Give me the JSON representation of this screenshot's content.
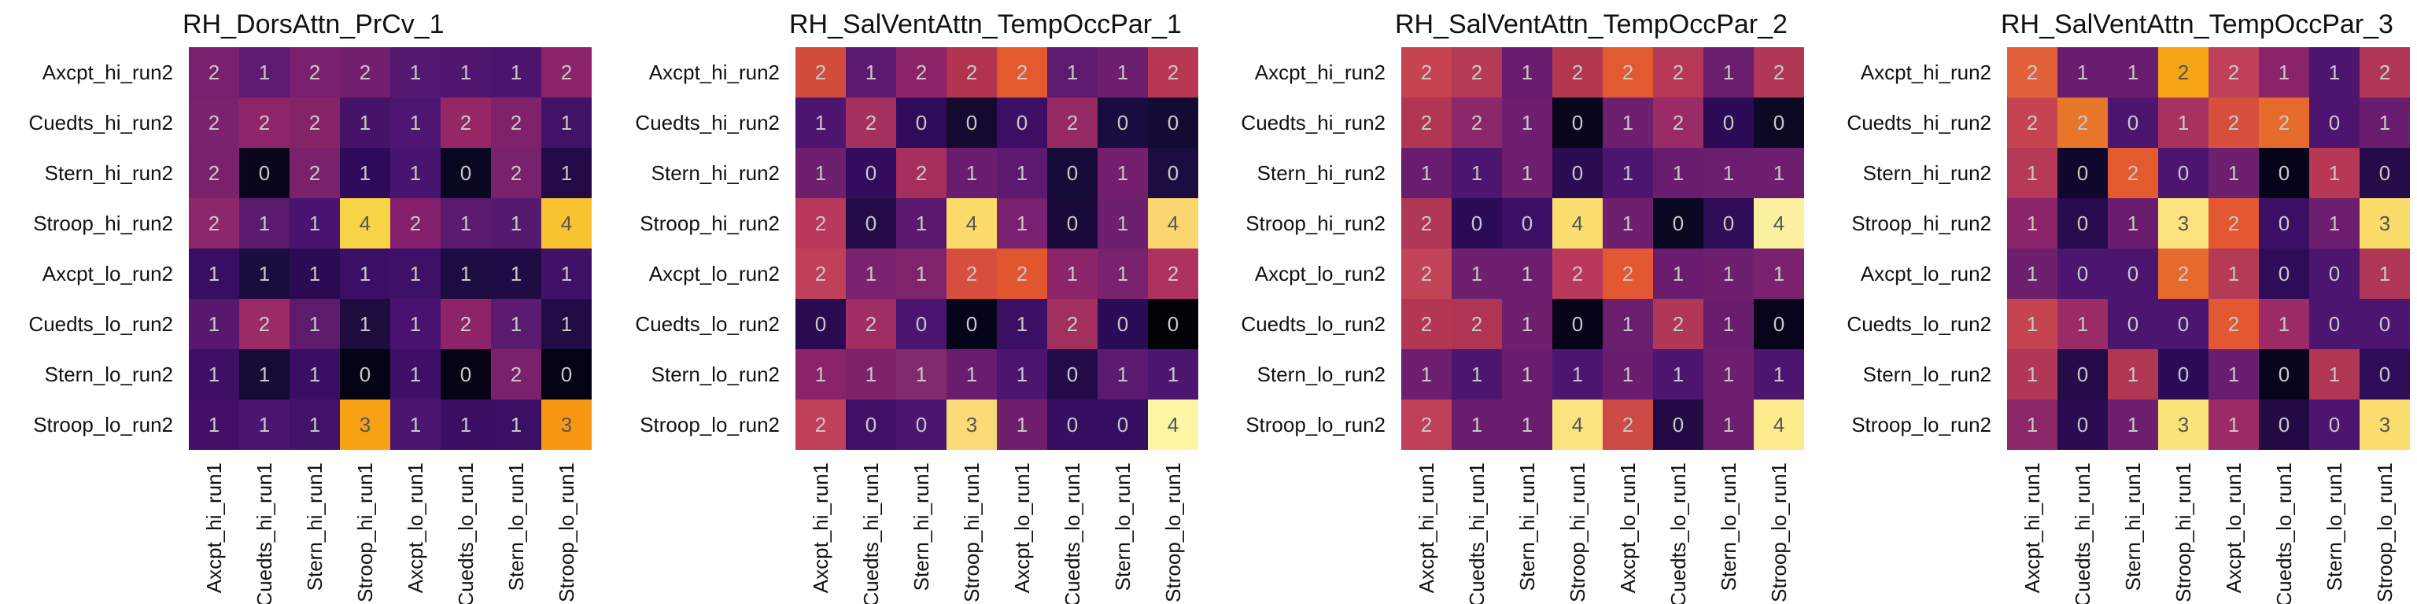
{
  "chart_data": [
    {
      "type": "heatmap",
      "title": "RH_DorsAttn_PrCv_1",
      "rows": [
        "Axcpt_hi_run2",
        "Cuedts_hi_run2",
        "Stern_hi_run2",
        "Stroop_hi_run2",
        "Axcpt_lo_run2",
        "Cuedts_lo_run2",
        "Stern_lo_run2",
        "Stroop_lo_run2"
      ],
      "cols": [
        "Axcpt_hi_run1",
        "Cuedts_hi_run1",
        "Stern_hi_run1",
        "Stroop_hi_run1",
        "Axcpt_lo_run1",
        "Cuedts_lo_run1",
        "Stern_lo_run1",
        "Stroop_lo_run1"
      ],
      "values": [
        [
          2,
          1,
          2,
          2,
          1,
          1,
          1,
          2
        ],
        [
          2,
          2,
          2,
          1,
          1,
          2,
          2,
          1
        ],
        [
          2,
          0,
          2,
          1,
          1,
          0,
          2,
          1
        ],
        [
          2,
          1,
          1,
          4,
          2,
          1,
          1,
          4
        ],
        [
          1,
          1,
          1,
          1,
          1,
          1,
          1,
          1
        ],
        [
          1,
          2,
          1,
          1,
          1,
          2,
          1,
          1
        ],
        [
          1,
          1,
          1,
          0,
          1,
          0,
          2,
          0
        ],
        [
          1,
          1,
          1,
          3,
          1,
          1,
          1,
          3
        ]
      ],
      "colors": [
        [
          "#7a1f6d",
          "#5d1a6e",
          "#7a1f6d",
          "#731f6d",
          "#541870",
          "#501670",
          "#4d1570",
          "#8a2369"
        ],
        [
          "#7c216c",
          "#8f2468",
          "#852367",
          "#461369",
          "#4f1572",
          "#962767",
          "#7f226b",
          "#411367"
        ],
        [
          "#7a206c",
          "#09061c",
          "#7b216b",
          "#2f0a5b",
          "#491470",
          "#0a0722",
          "#79216c",
          "#230b47"
        ],
        [
          "#8c2769",
          "#5a1a6e",
          "#4a136f",
          "#f6d445",
          "#831f6c",
          "#591a6f",
          "#561970",
          "#f9c230"
        ],
        [
          "#380e62",
          "#1b0c40",
          "#2b0b53",
          "#3a0f65",
          "#3e1067",
          "#1d0c42",
          "#1f0c45",
          "#411167"
        ],
        [
          "#57186d",
          "#9a2b66",
          "#5e1b6d",
          "#1e0c3f",
          "#491270",
          "#8d2468",
          "#5a1a6f",
          "#210c45"
        ],
        [
          "#3f0f66",
          "#140b36",
          "#3a0f63",
          "#050416",
          "#3e0f66",
          "#060414",
          "#7b216b",
          "#040313"
        ],
        [
          "#440f67",
          "#4b1670",
          "#411368",
          "#f7a115",
          "#4b1570",
          "#3a0f63",
          "#3b1064",
          "#f89812"
        ]
      ]
    },
    {
      "type": "heatmap",
      "title": "RH_SalVentAttn_TempOccPar_1",
      "rows": [
        "Axcpt_hi_run2",
        "Cuedts_hi_run2",
        "Stern_hi_run2",
        "Stroop_hi_run2",
        "Axcpt_lo_run2",
        "Cuedts_lo_run2",
        "Stern_lo_run2",
        "Stroop_lo_run2"
      ],
      "cols": [
        "Axcpt_hi_run1",
        "Cuedts_hi_run1",
        "Stern_hi_run1",
        "Stroop_hi_run1",
        "Axcpt_lo_run1",
        "Cuedts_lo_run1",
        "Stern_lo_run1",
        "Stroop_lo_run1"
      ],
      "values": [
        [
          2,
          1,
          2,
          2,
          2,
          1,
          1,
          2
        ],
        [
          1,
          2,
          0,
          0,
          0,
          2,
          0,
          0
        ],
        [
          1,
          0,
          2,
          1,
          1,
          0,
          1,
          0
        ],
        [
          2,
          0,
          1,
          4,
          1,
          0,
          1,
          4
        ],
        [
          2,
          1,
          1,
          2,
          2,
          1,
          1,
          2
        ],
        [
          0,
          2,
          0,
          0,
          1,
          2,
          0,
          0
        ],
        [
          1,
          1,
          1,
          1,
          1,
          0,
          1,
          1
        ],
        [
          2,
          0,
          0,
          3,
          1,
          0,
          0,
          4
        ]
      ],
      "colors": [
        [
          "#d24c3b",
          "#5c1a6f",
          "#8c2369",
          "#b2334f",
          "#e35a2f",
          "#5d1a6f",
          "#6d1e6e",
          "#b83755"
        ],
        [
          "#4d1570",
          "#a3305e",
          "#300b5a",
          "#16092f",
          "#3c0f64",
          "#962a65",
          "#1b0c40",
          "#140b34"
        ],
        [
          "#6e1f6d",
          "#340c5e",
          "#a82f5d",
          "#6a1d6e",
          "#5b1a6f",
          "#160b38",
          "#731f6d",
          "#1c0c40"
        ],
        [
          "#b8395b",
          "#230b48",
          "#5a196f",
          "#fbdc6a",
          "#792170",
          "#19093b",
          "#6e1f6d",
          "#fbd670"
        ],
        [
          "#c0405a",
          "#7a2270",
          "#7f236c",
          "#d94f3f",
          "#e2572f",
          "#8b2469",
          "#7a2270",
          "#ad325d"
        ],
        [
          "#2a0b52",
          "#9f2e62",
          "#4a1470",
          "#06041a",
          "#3a0f64",
          "#a2305e",
          "#2c0b56",
          "#020107"
        ],
        [
          "#8a2369",
          "#7e216b",
          "#802b6e",
          "#6a1d6e",
          "#4b1570",
          "#230b48",
          "#5b1a6f",
          "#4d1570"
        ],
        [
          "#c0405a",
          "#410f65",
          "#4b1570",
          "#fbda78",
          "#701f6d",
          "#360e61",
          "#350d60",
          "#fcf6a4"
        ]
      ]
    },
    {
      "type": "heatmap",
      "title": "RH_SalVentAttn_TempOccPar_2",
      "rows": [
        "Axcpt_hi_run2",
        "Cuedts_hi_run2",
        "Stern_hi_run2",
        "Stroop_hi_run2",
        "Axcpt_lo_run2",
        "Cuedts_lo_run2",
        "Stern_lo_run2",
        "Stroop_lo_run2"
      ],
      "cols": [
        "Axcpt_hi_run1",
        "Cuedts_hi_run1",
        "Stern_hi_run1",
        "Stroop_hi_run1",
        "Axcpt_lo_run1",
        "Cuedts_lo_run1",
        "Stern_lo_run1",
        "Stroop_lo_run1"
      ],
      "values": [
        [
          2,
          2,
          1,
          2,
          2,
          2,
          1,
          2
        ],
        [
          2,
          2,
          1,
          0,
          1,
          2,
          0,
          0
        ],
        [
          1,
          1,
          1,
          0,
          1,
          1,
          1,
          1
        ],
        [
          2,
          0,
          0,
          4,
          1,
          0,
          0,
          4
        ],
        [
          2,
          1,
          1,
          2,
          2,
          1,
          1,
          1
        ],
        [
          2,
          2,
          1,
          0,
          1,
          2,
          1,
          0
        ],
        [
          1,
          1,
          1,
          1,
          1,
          1,
          1,
          1
        ],
        [
          2,
          1,
          1,
          4,
          2,
          0,
          1,
          4
        ]
      ],
      "colors": [
        [
          "#c64452",
          "#b53a56",
          "#6a1d6e",
          "#b3374f",
          "#e25a2f",
          "#b63957",
          "#6b1e6e",
          "#b13756"
        ],
        [
          "#b03654",
          "#8c2769",
          "#6d1e6e",
          "#08051d",
          "#6e1f6d",
          "#9a2b66",
          "#2c0b56",
          "#0c0824"
        ],
        [
          "#6a1d6e",
          "#4b1570",
          "#6e1f6d",
          "#2b0b52",
          "#4b1570",
          "#6a1d6e",
          "#6b1e6e",
          "#6d1e6e"
        ],
        [
          "#b13756",
          "#2b0b56",
          "#3b0f65",
          "#fbde6f",
          "#6e1f6d",
          "#0a0722",
          "#2f0c58",
          "#fcf1a0"
        ],
        [
          "#c24458",
          "#6e1f6d",
          "#6d1e6e",
          "#b8395b",
          "#e35733",
          "#6a1d6e",
          "#6e1f6d",
          "#7a2270"
        ],
        [
          "#b33755",
          "#b03454",
          "#6e1f6d",
          "#070419",
          "#6c1e6e",
          "#b03756",
          "#6a1d6e",
          "#07041c"
        ],
        [
          "#6d1e6e",
          "#4b1570",
          "#6a1d6e",
          "#4d1570",
          "#6a1d6e",
          "#4d1570",
          "#6d1e6e",
          "#4b1570"
        ],
        [
          "#c0405a",
          "#6a1d6e",
          "#6a1d6e",
          "#fce380",
          "#cd4a47",
          "#220b45",
          "#6d1e6e",
          "#fcec8e"
        ]
      ]
    },
    {
      "type": "heatmap",
      "title": "RH_SalVentAttn_TempOccPar_3",
      "rows": [
        "Axcpt_hi_run2",
        "Cuedts_hi_run2",
        "Stern_hi_run2",
        "Stroop_hi_run2",
        "Axcpt_lo_run2",
        "Cuedts_lo_run2",
        "Stern_lo_run2",
        "Stroop_lo_run2"
      ],
      "cols": [
        "Axcpt_hi_run1",
        "Cuedts_hi_run1",
        "Stern_hi_run1",
        "Stroop_hi_run1",
        "Axcpt_lo_run1",
        "Cuedts_lo_run1",
        "Stern_lo_run1",
        "Stroop_lo_run1"
      ],
      "values": [
        [
          2,
          1,
          1,
          2,
          2,
          1,
          1,
          2
        ],
        [
          2,
          2,
          0,
          1,
          2,
          2,
          0,
          1
        ],
        [
          1,
          0,
          2,
          0,
          1,
          0,
          1,
          0
        ],
        [
          1,
          0,
          1,
          3,
          2,
          0,
          1,
          3
        ],
        [
          1,
          0,
          0,
          2,
          1,
          0,
          0,
          1
        ],
        [
          1,
          1,
          0,
          0,
          2,
          1,
          0,
          0
        ],
        [
          1,
          0,
          1,
          0,
          1,
          0,
          1,
          0
        ],
        [
          1,
          0,
          1,
          3,
          1,
          0,
          0,
          3
        ]
      ],
      "colors": [
        [
          "#e3613a",
          "#6a1d6e",
          "#6a1d6e",
          "#f5a414",
          "#c0405a",
          "#8a2369",
          "#4d1570",
          "#b13756"
        ],
        [
          "#c64452",
          "#e7762a",
          "#4b1570",
          "#a73260",
          "#d64f3c",
          "#e66a2b",
          "#4d1570",
          "#6a1d6e"
        ],
        [
          "#b63957",
          "#10082c",
          "#e35a2f",
          "#4d1570",
          "#6e1f6d",
          "#06041a",
          "#b83755",
          "#250b4a"
        ],
        [
          "#8a2369",
          "#270b4d",
          "#6a1d6e",
          "#fce380",
          "#e35733",
          "#3b0f65",
          "#6d1e6e",
          "#fbdc6a"
        ],
        [
          "#6e1f6d",
          "#4b1570",
          "#4b1570",
          "#e66a2b",
          "#b53a56",
          "#2f0c58",
          "#4b1570",
          "#b13756"
        ],
        [
          "#c64452",
          "#9a2b66",
          "#4b1570",
          "#4b1570",
          "#e35733",
          "#9a2b66",
          "#4b1570",
          "#4b1570"
        ],
        [
          "#b13756",
          "#250b4a",
          "#b03654",
          "#2c0b56",
          "#6a1d6e",
          "#08051d",
          "#b03654",
          "#2f0c58"
        ],
        [
          "#8c2769",
          "#2b0b52",
          "#6d1e6e",
          "#fbe279",
          "#9a2b66",
          "#220b45",
          "#4d1570",
          "#fbde6f"
        ]
      ]
    }
  ]
}
